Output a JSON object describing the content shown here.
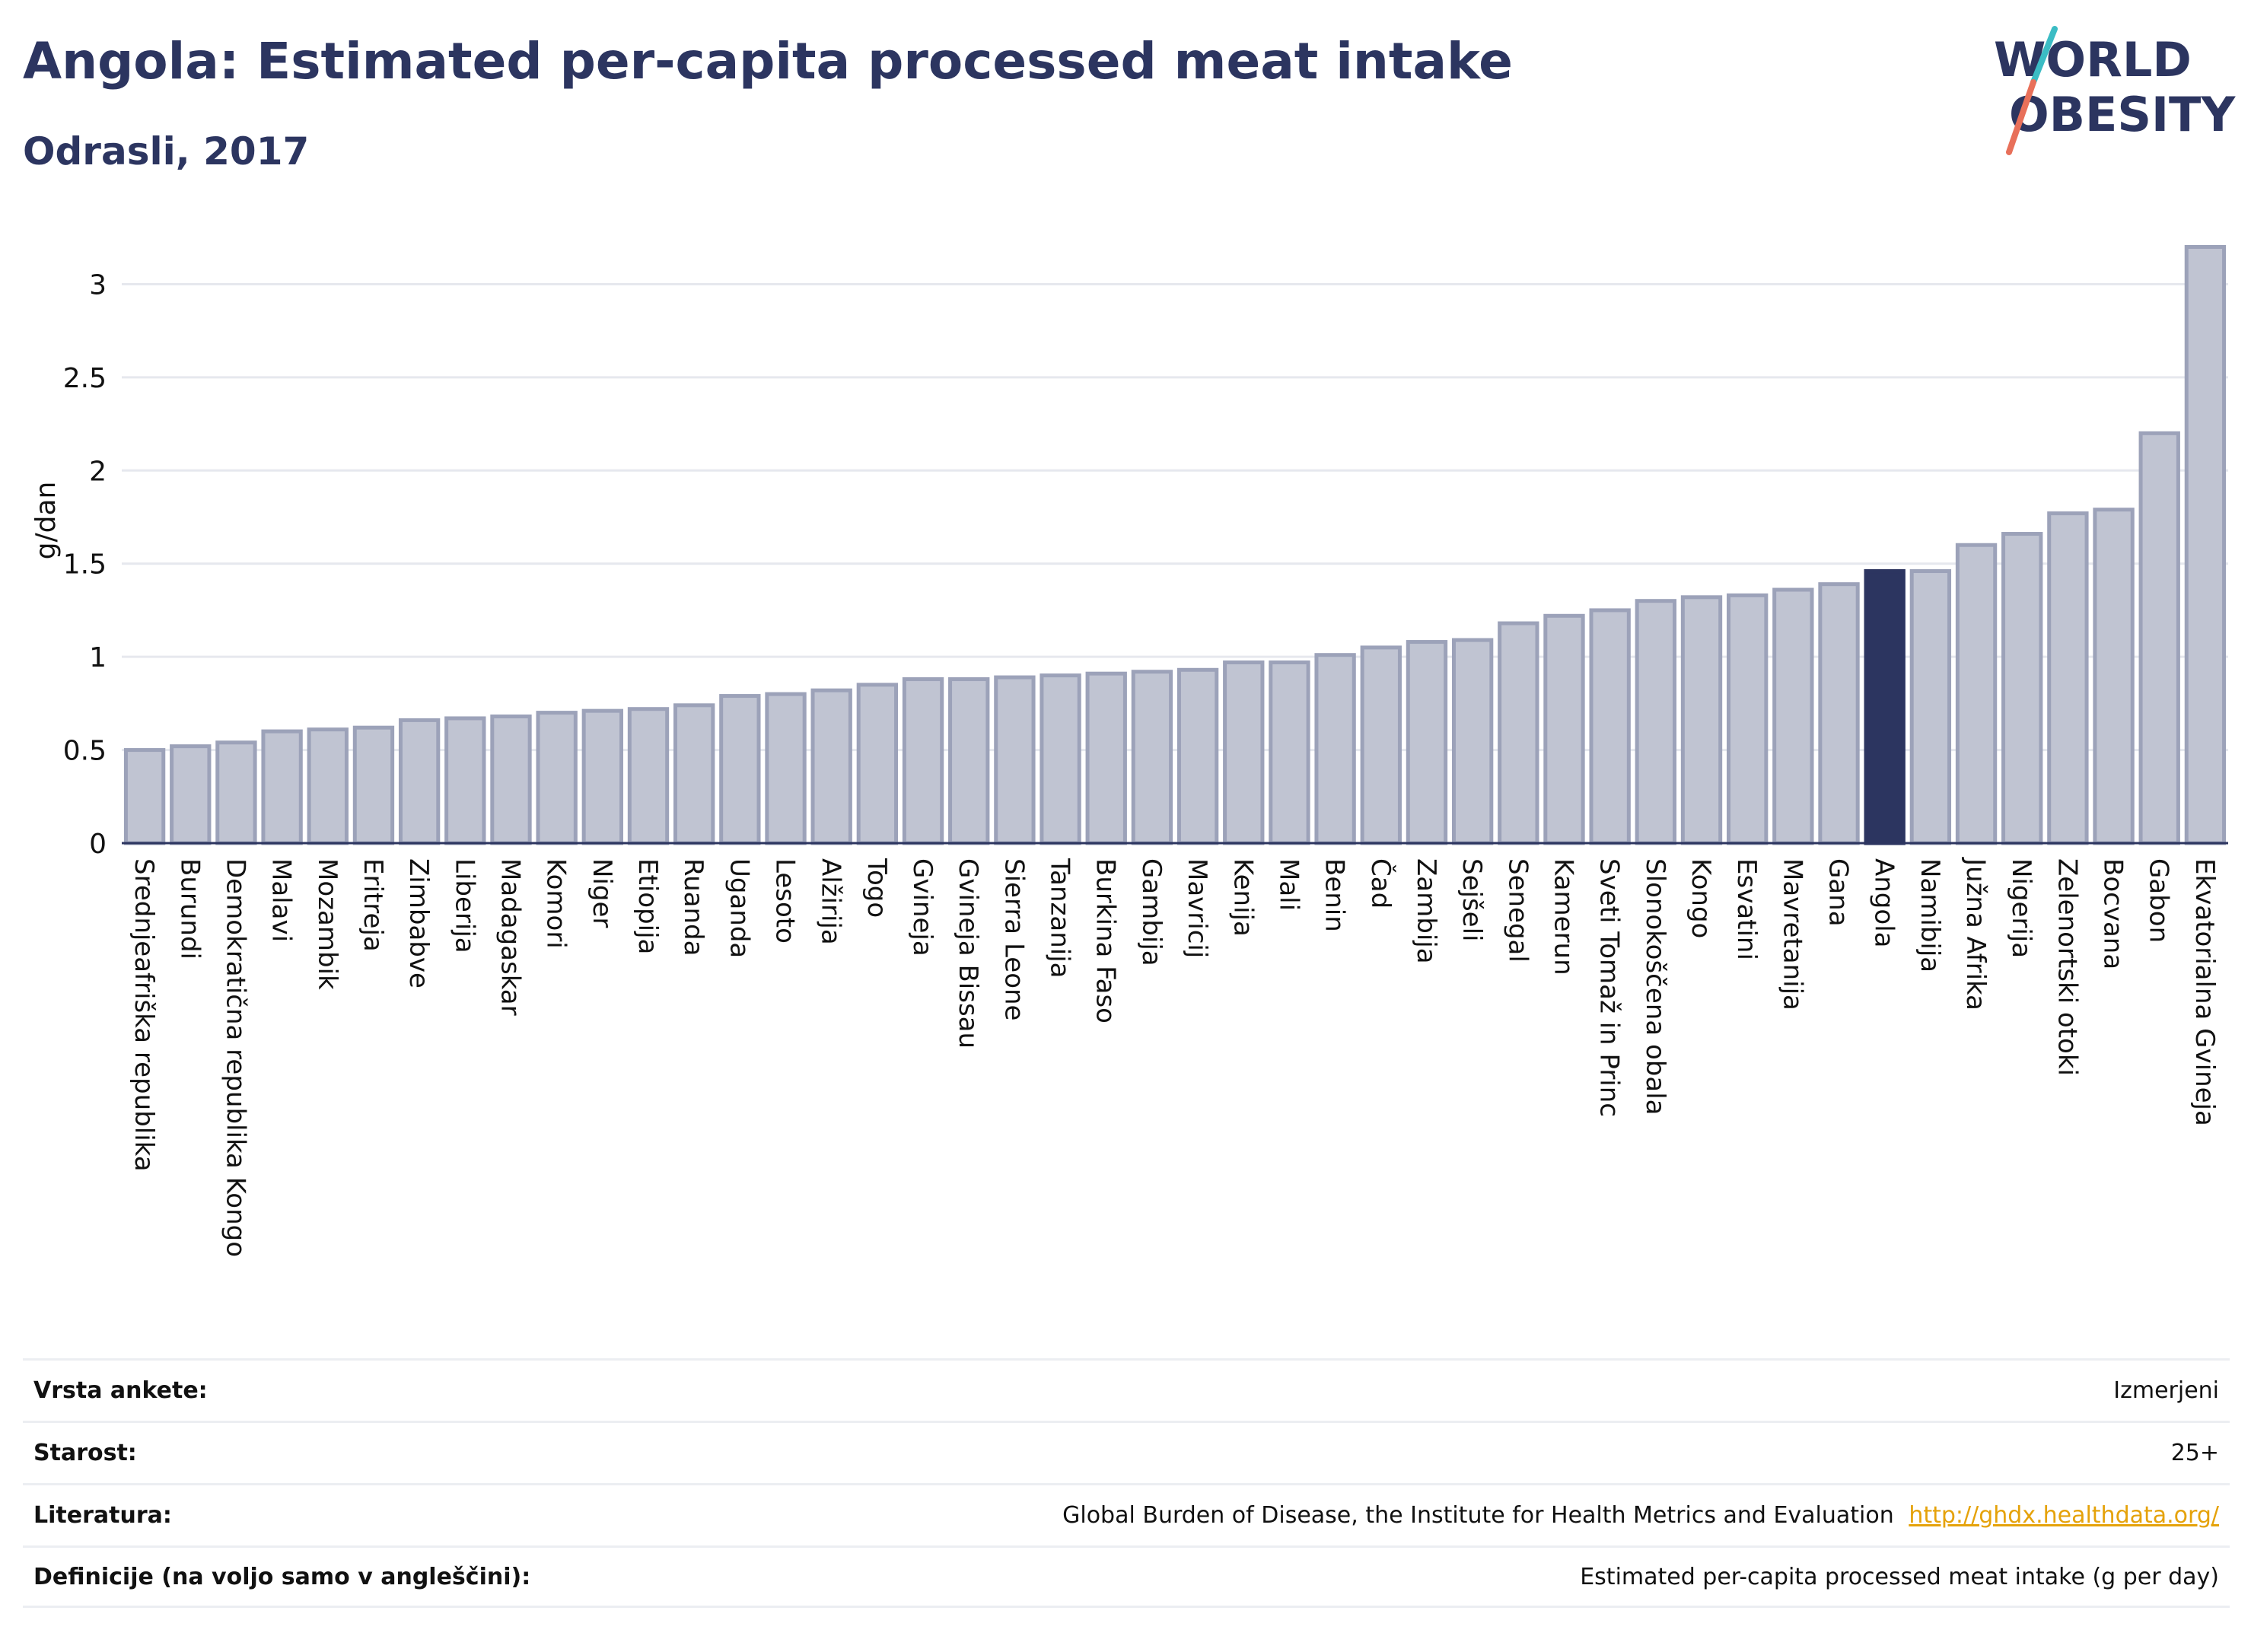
{
  "header": {
    "title": "Angola: Estimated per-capita processed meat intake",
    "subtitle": "Odrasli, 2017"
  },
  "logo": {
    "line1": "WORLD",
    "line2": "OBESITY",
    "colors": {
      "text": "#2c3560",
      "teal": "#3bbcc4",
      "coral": "#e8705a"
    }
  },
  "chart_data": {
    "type": "bar",
    "title": "",
    "xlabel": "",
    "ylabel": "g/dan",
    "ylim": [
      0,
      3.3
    ],
    "yticks": [
      0,
      0.5,
      1,
      1.5,
      2,
      2.5,
      3
    ],
    "ytick_labels": [
      "0",
      "0.5",
      "1",
      "1.5",
      "2",
      "2.5",
      "3"
    ],
    "grid": true,
    "highlight": "Angola",
    "colors": {
      "bar": "#c0c4d2",
      "bar_edge": "#9ca2b9",
      "highlight": "#2c3560"
    },
    "categories": [
      "Srednjeafriška republika",
      "Burundi",
      "Demokratična republika Kongo",
      "Malavi",
      "Mozambik",
      "Eritreja",
      "Zimbabve",
      "Liberija",
      "Madagaskar",
      "Komori",
      "Niger",
      "Etiopija",
      "Ruanda",
      "Uganda",
      "Lesoto",
      "Alžirija",
      "Togo",
      "Gvineja",
      "Gvineja Bissau",
      "Sierra Leone",
      "Tanzanija",
      "Burkina Faso",
      "Gambija",
      "Mavricij",
      "Kenija",
      "Mali",
      "Benin",
      "Čad",
      "Zambija",
      "Sejšeli",
      "Senegal",
      "Kamerun",
      "Sveti Tomaž in Princ",
      "Slonokoščena obala",
      "Kongo",
      "Esvatini",
      "Mavretanija",
      "Gana",
      "Angola",
      "Namibija",
      "Južna Afrika",
      "Nigerija",
      "Zelenortski otoki",
      "Bocvana",
      "Gabon",
      "Ekvatorialna Gvineja"
    ],
    "values": [
      0.5,
      0.52,
      0.54,
      0.6,
      0.61,
      0.62,
      0.66,
      0.67,
      0.68,
      0.7,
      0.71,
      0.72,
      0.74,
      0.79,
      0.8,
      0.82,
      0.85,
      0.88,
      0.88,
      0.89,
      0.9,
      0.91,
      0.92,
      0.93,
      0.97,
      0.97,
      1.01,
      1.05,
      1.08,
      1.09,
      1.18,
      1.22,
      1.25,
      1.3,
      1.32,
      1.33,
      1.36,
      1.39,
      1.46,
      1.46,
      1.6,
      1.66,
      1.77,
      1.79,
      2.2,
      3.2
    ]
  },
  "info": {
    "survey_label": "Vrsta ankete:",
    "survey_value": "Izmerjeni",
    "age_label": "Starost:",
    "age_value": "25+",
    "lit_label": "Literatura:",
    "lit_value": "Global Burden of Disease, the Institute for Health Metrics and Evaluation",
    "lit_link": "http://ghdx.healthdata.org/",
    "def_label": "Definicije (na voljo samo v angleščini):",
    "def_value": "Estimated per-capita processed meat intake (g per day)"
  }
}
